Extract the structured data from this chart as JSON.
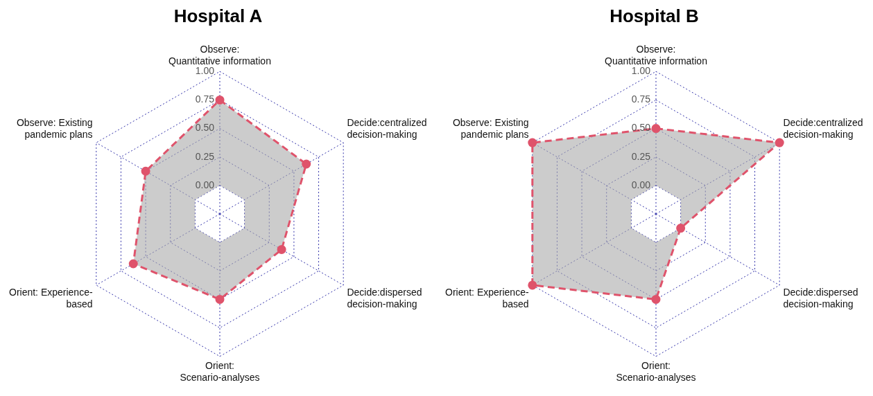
{
  "chart_data": [
    {
      "type": "radar",
      "title": "Hospital A",
      "categories": [
        "Observe:\nQuantitative information",
        "Decide:centralized\ndecision-making",
        "Decide:dispersed\ndecision-making",
        "Orient:\nScenario-analyses",
        "Orient: Experience-\nbased",
        "Observe: Existing\npandemic plans"
      ],
      "series": [
        {
          "color": "#df536b",
          "values": [
            0.75,
            0.625,
            0.375,
            0.5,
            0.625,
            0.5
          ]
        }
      ],
      "ylim": [
        -0.25,
        1
      ],
      "yticks": [
        {
          "value": 0,
          "label": "0.00"
        },
        {
          "value": 0.25,
          "label": "0.25"
        },
        {
          "value": 0.5,
          "label": "0.50"
        },
        {
          "value": 0.75,
          "label": "0.75"
        },
        {
          "value": 1,
          "label": "1.00"
        }
      ],
      "grid": true,
      "legend": false,
      "marker": "circle",
      "line_style": "dashed"
    },
    {
      "type": "radar",
      "title": "Hospital B",
      "categories": [
        "Observe:\nQuantitative information",
        "Decide:centralized\ndecision-making",
        "Decide:dispersed\ndecision-making",
        "Orient:\nScenario-analyses",
        "Orient: Experience-\nbased",
        "Observe: Existing\npandemic plans"
      ],
      "series": [
        {
          "color": "#df536b",
          "values": [
            0.5,
            1,
            0,
            0.5,
            1,
            1
          ]
        }
      ],
      "ylim": [
        -0.25,
        1
      ],
      "yticks": [
        {
          "value": 0,
          "label": "0.00"
        },
        {
          "value": 0.25,
          "label": "0.25"
        },
        {
          "value": 0.5,
          "label": "0.50"
        },
        {
          "value": 0.75,
          "label": "0.75"
        },
        {
          "value": 1,
          "label": "1.00"
        }
      ],
      "grid": true,
      "legend": false,
      "marker": "circle",
      "line_style": "dashed"
    }
  ]
}
